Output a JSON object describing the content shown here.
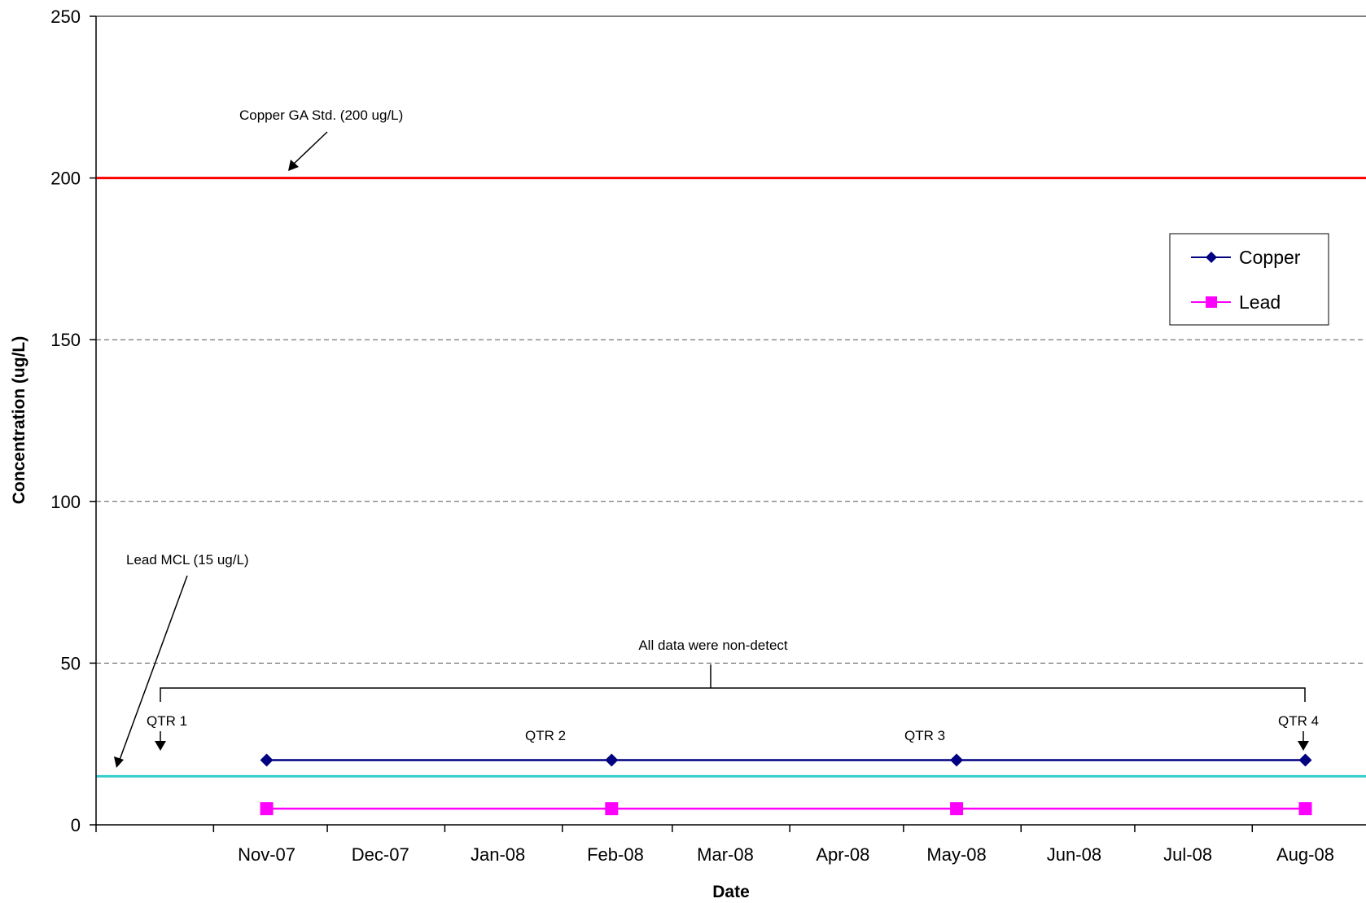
{
  "chart_data": {
    "type": "line",
    "title": "",
    "xlabel": "Date",
    "ylabel": "Concentration (ug/L)",
    "ylim": [
      0,
      250
    ],
    "yticks": [
      0,
      50,
      100,
      150,
      200,
      250
    ],
    "xlim": [
      "2007-10-01",
      "2008-08-31"
    ],
    "xticks": [
      {
        "label": "Nov-07",
        "date": "2007-11-15"
      },
      {
        "label": "Dec-07",
        "date": "2007-12-15"
      },
      {
        "label": "Jan-08",
        "date": "2008-01-15"
      },
      {
        "label": "Feb-08",
        "date": "2008-02-15"
      },
      {
        "label": "Mar-08",
        "date": "2008-03-15"
      },
      {
        "label": "Apr-08",
        "date": "2008-04-15"
      },
      {
        "label": "May-08",
        "date": "2008-05-15"
      },
      {
        "label": "Jun-08",
        "date": "2008-06-15"
      },
      {
        "label": "Jul-08",
        "date": "2008-07-15"
      },
      {
        "label": "Aug-08",
        "date": "2008-08-15"
      }
    ],
    "series": [
      {
        "name": "Copper",
        "color": "#000080",
        "marker": "diamond",
        "x": [
          "2007-11-15",
          "2008-02-14",
          "2008-05-15",
          "2008-08-15"
        ],
        "y": [
          20,
          20,
          20,
          20
        ]
      },
      {
        "name": "Lead",
        "color": "#FF00FF",
        "marker": "square",
        "x": [
          "2007-11-15",
          "2008-02-14",
          "2008-05-15",
          "2008-08-15"
        ],
        "y": [
          5,
          5,
          5,
          5
        ]
      }
    ],
    "reference_lines": [
      {
        "value": 200,
        "color": "#FF0000"
      },
      {
        "value": 15,
        "color": "#33CCCC"
      }
    ],
    "annotations": {
      "copper_std": "Copper GA Std. (200 ug/L)",
      "lead_mcl": "Lead MCL (15 ug/L)",
      "non_detect": "All data were non-detect",
      "quarters": [
        "QTR 1",
        "QTR 2",
        "QTR 3",
        "QTR 4"
      ]
    },
    "grid": {
      "y": true,
      "style": "dashed"
    },
    "legend": {
      "position": "right"
    }
  }
}
